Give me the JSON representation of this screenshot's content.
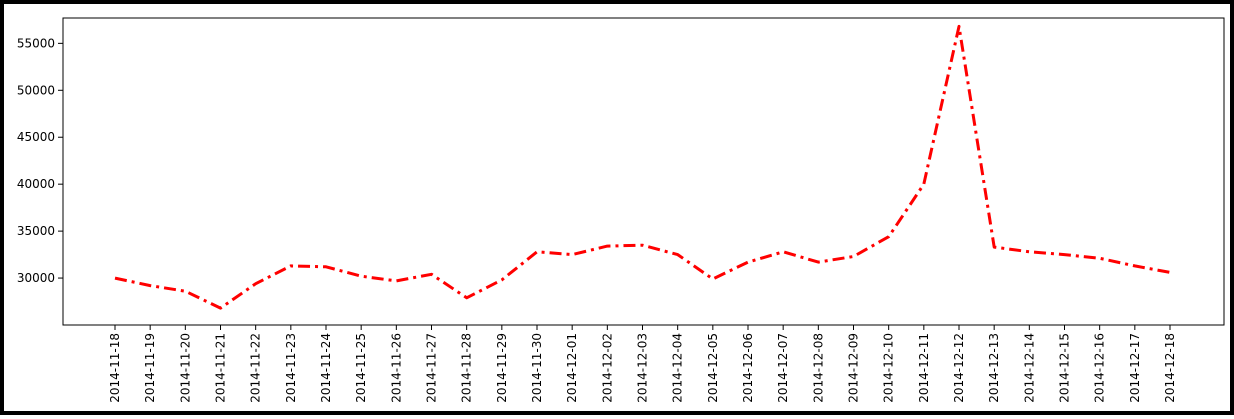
{
  "chart_data": {
    "type": "line",
    "title": "",
    "xlabel": "",
    "ylabel": "",
    "x": [
      "2014-11-18",
      "2014-11-19",
      "2014-11-20",
      "2014-11-21",
      "2014-11-22",
      "2014-11-23",
      "2014-11-24",
      "2014-11-25",
      "2014-11-26",
      "2014-11-27",
      "2014-11-28",
      "2014-11-29",
      "2014-11-30",
      "2014-12-01",
      "2014-12-02",
      "2014-12-03",
      "2014-12-04",
      "2014-12-05",
      "2014-12-06",
      "2014-12-07",
      "2014-12-08",
      "2014-12-09",
      "2014-12-10",
      "2014-12-11",
      "2014-12-12",
      "2014-12-13",
      "2014-12-14",
      "2014-12-15",
      "2014-12-16",
      "2014-12-17",
      "2014-12-18"
    ],
    "series": [
      {
        "values": [
          30000,
          29200,
          28600,
          26800,
          29400,
          31300,
          31200,
          30200,
          29700,
          30400,
          27900,
          29800,
          32800,
          32500,
          33400,
          33500,
          32500,
          29900,
          31700,
          32800,
          31700,
          32300,
          34400,
          40000,
          56800,
          33300,
          32800,
          32500,
          32100,
          31300,
          30600
        ],
        "color": "#ff0000",
        "linestyle": "dash-dot"
      }
    ],
    "yticks": [
      "30000",
      "35000",
      "40000",
      "45000",
      "50000",
      "55000"
    ],
    "ylim": [
      25000,
      57700
    ],
    "grid": false,
    "legend": "none"
  }
}
